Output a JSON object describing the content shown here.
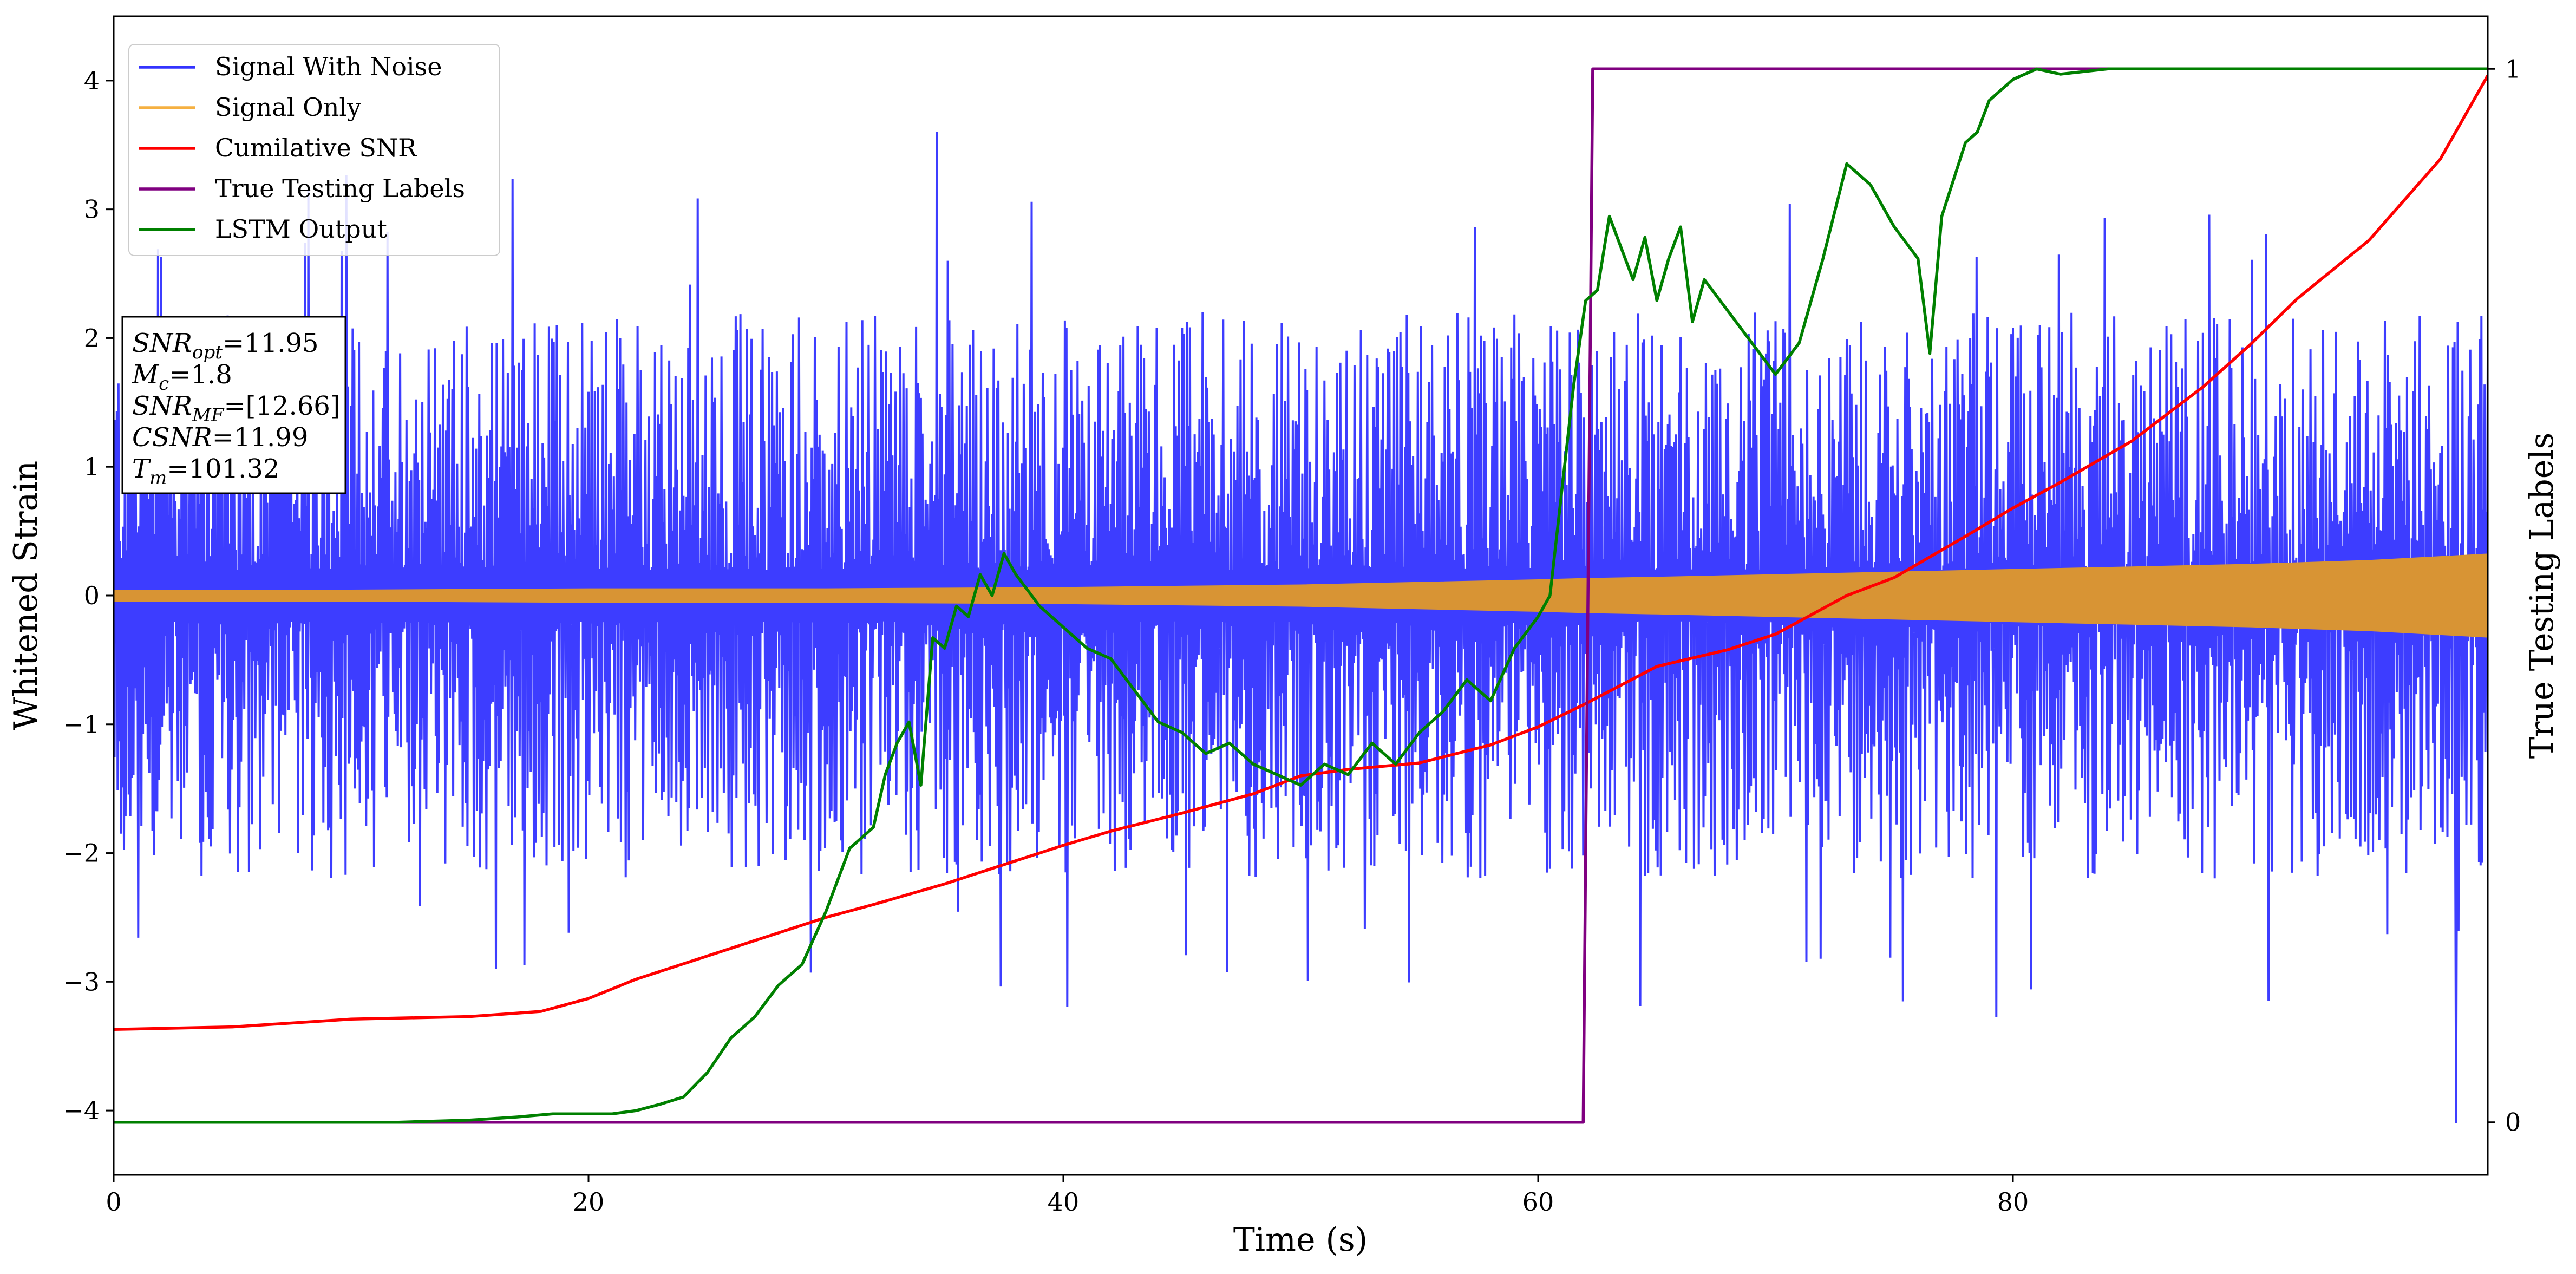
{
  "chart_data": {
    "type": "line",
    "xlabel": "Time (s)",
    "ylabel_left": "Whitened Strain",
    "ylabel_right": "True Testing Labels",
    "xlim": [
      0,
      100
    ],
    "ylim_left": [
      -4.5,
      4.5
    ],
    "ylim_right": [
      -0.05,
      1.05
    ],
    "x_ticks": [
      0,
      20,
      40,
      60,
      80
    ],
    "y_ticks_left": [
      -4,
      -3,
      -2,
      -1,
      0,
      1,
      2,
      3,
      4
    ],
    "y_ticks_right": [
      0,
      1
    ],
    "grid": false,
    "legend": {
      "position": "top-left",
      "entries": [
        {
          "name": "Signal With Noise",
          "color": "#3333ff"
        },
        {
          "name": "Signal Only",
          "color": "#f5b041"
        },
        {
          "name": "Cumilative SNR",
          "color": "#ff0000"
        },
        {
          "name": "True Testing Labels",
          "color": "#800080"
        },
        {
          "name": "LSTM Output",
          "color": "#008000"
        }
      ]
    },
    "annotation": [
      {
        "name": "SNR",
        "sub": "opt",
        "value": "=11.95"
      },
      {
        "name": "M",
        "sub": "c",
        "value": "=1.8"
      },
      {
        "name": "SNR",
        "sub": "MF",
        "value": "=[12.66]"
      },
      {
        "name": "CSNR",
        "sub": "",
        "value": "=11.99"
      },
      {
        "name": "T",
        "sub": "m",
        "value": "=101.32"
      }
    ],
    "series": [
      {
        "name": "Signal With Noise",
        "axis": "left",
        "color": "#3333ff",
        "kind": "noise",
        "typical_range": [
          -2.2,
          2.2
        ],
        "extremes": [
          -4.1,
          3.6
        ]
      },
      {
        "name": "Signal Only",
        "axis": "left",
        "color": "#d89434",
        "kind": "envelope",
        "x": [
          0,
          10,
          20,
          30,
          40,
          45,
          50,
          55,
          60,
          62,
          65,
          70,
          75,
          80,
          85,
          90,
          95,
          100
        ],
        "amplitude": [
          0.04,
          0.04,
          0.05,
          0.05,
          0.06,
          0.07,
          0.08,
          0.1,
          0.12,
          0.13,
          0.14,
          0.16,
          0.18,
          0.2,
          0.22,
          0.24,
          0.27,
          0.32
        ]
      },
      {
        "name": "Cumilative SNR",
        "axis": "left",
        "color": "#ff0000",
        "x": [
          0,
          5,
          10,
          15,
          18,
          20,
          22,
          25,
          28,
          30,
          32,
          35,
          38,
          40,
          42,
          45,
          48,
          50,
          52,
          55,
          58,
          60,
          62,
          65,
          68,
          70,
          71,
          73,
          75,
          78,
          80,
          82,
          85,
          88,
          90,
          92,
          95,
          98,
          100
        ],
        "y": [
          -3.37,
          -3.35,
          -3.29,
          -3.27,
          -3.23,
          -3.13,
          -2.98,
          -2.8,
          -2.62,
          -2.5,
          -2.4,
          -2.24,
          -2.06,
          -1.94,
          -1.83,
          -1.69,
          -1.54,
          -1.4,
          -1.35,
          -1.3,
          -1.16,
          -1.02,
          -0.84,
          -0.55,
          -0.42,
          -0.3,
          -0.2,
          0.0,
          0.14,
          0.46,
          0.68,
          0.88,
          1.2,
          1.62,
          1.95,
          2.31,
          2.76,
          3.39,
          4.04
        ]
      },
      {
        "name": "True Testing Labels",
        "axis": "right",
        "color": "#800080",
        "x": [
          0,
          61.9,
          62.3,
          100
        ],
        "y": [
          0,
          0,
          1,
          1
        ]
      },
      {
        "name": "LSTM Output",
        "axis": "right",
        "color": "#008000",
        "x": [
          0,
          12,
          15,
          17,
          18.5,
          20,
          21,
          22,
          23,
          24,
          25,
          26,
          27,
          28,
          29,
          30,
          31,
          32,
          32.5,
          33,
          33.5,
          34,
          34.5,
          35,
          35.5,
          36,
          36.5,
          37,
          37.5,
          38,
          39,
          40,
          41,
          42,
          43,
          44,
          45,
          46,
          47,
          48,
          49,
          50,
          51,
          52,
          53,
          54,
          55,
          56,
          57,
          58,
          59,
          60,
          60.5,
          61,
          61.5,
          62,
          62.5,
          63,
          63.5,
          64,
          64.5,
          65,
          65.5,
          66,
          66.5,
          67,
          68,
          69,
          70,
          71,
          72,
          73,
          74,
          75,
          76,
          76.5,
          77,
          78,
          78.5,
          79,
          80,
          81,
          82,
          84,
          86,
          88,
          90,
          100
        ],
        "y": [
          0,
          0,
          0.002,
          0.005,
          0.008,
          0.008,
          0.008,
          0.011,
          0.017,
          0.024,
          0.047,
          0.08,
          0.1,
          0.13,
          0.15,
          0.2,
          0.26,
          0.28,
          0.33,
          0.36,
          0.38,
          0.32,
          0.46,
          0.45,
          0.49,
          0.48,
          0.52,
          0.5,
          0.54,
          0.52,
          0.49,
          0.47,
          0.45,
          0.44,
          0.41,
          0.38,
          0.37,
          0.35,
          0.36,
          0.34,
          0.33,
          0.32,
          0.34,
          0.33,
          0.36,
          0.34,
          0.37,
          0.39,
          0.42,
          0.4,
          0.45,
          0.48,
          0.5,
          0.6,
          0.7,
          0.78,
          0.79,
          0.86,
          0.83,
          0.8,
          0.84,
          0.78,
          0.82,
          0.85,
          0.76,
          0.8,
          0.77,
          0.74,
          0.71,
          0.74,
          0.82,
          0.91,
          0.89,
          0.85,
          0.82,
          0.73,
          0.86,
          0.93,
          0.94,
          0.97,
          0.99,
          1.0,
          0.995,
          1.0,
          1.0,
          1.0,
          1.0,
          1.0
        ]
      }
    ]
  }
}
